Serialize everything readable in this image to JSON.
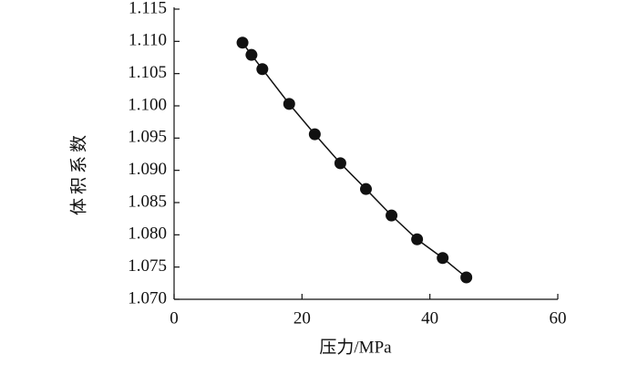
{
  "chart_data": {
    "type": "scatter",
    "x_label": "压力/MPa",
    "y_label": "体积系数",
    "xlim": [
      0,
      60
    ],
    "xticks": [
      0,
      20,
      40,
      60
    ],
    "ylim": [
      1.07,
      1.115
    ],
    "yticks": [
      {
        "value": 1.07,
        "label": "1.070"
      },
      1.075,
      {
        "value": 1.08,
        "label": "1.080"
      },
      1.085,
      {
        "value": 1.09,
        "label": "1.090"
      },
      1.095,
      {
        "value": 1.1,
        "label": "1.100"
      },
      1.105,
      {
        "value": 1.11,
        "label": "1.110"
      },
      1.115
    ],
    "line": true,
    "series": [
      {
        "color": "#111111",
        "x": [
          10.7,
          12.1,
          13.8,
          18,
          22,
          26,
          30,
          34,
          38,
          42,
          45.7
        ],
        "values": [
          1.1098,
          1.1079,
          1.1057,
          1.1003,
          1.0956,
          1.0911,
          1.0871,
          1.083,
          1.0793,
          1.0764,
          1.0734
        ]
      }
    ]
  }
}
